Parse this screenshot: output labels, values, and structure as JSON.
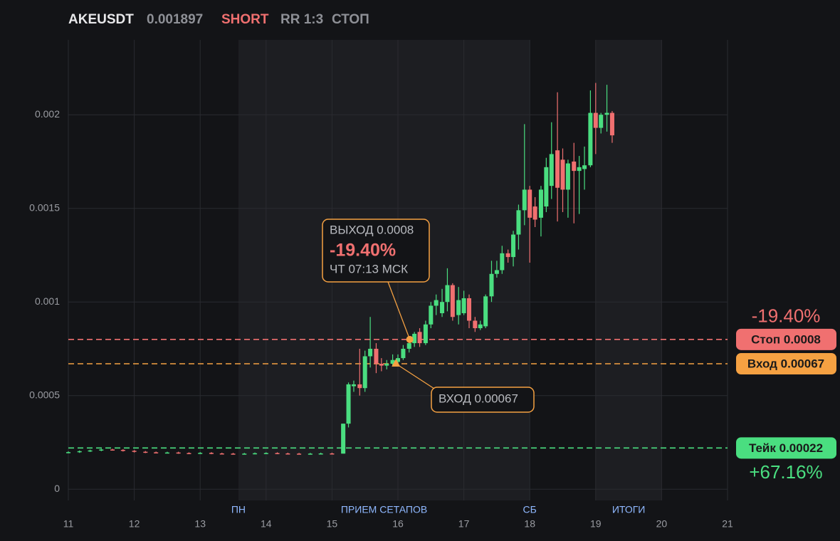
{
  "header": {
    "symbol": "AKEUSDT",
    "price": "0.001897",
    "side": "SHORT",
    "rr": "RR 1:3",
    "status": "СТОП"
  },
  "chart_data": {
    "type": "candlestick",
    "x": [
      11,
      11.17,
      11.33,
      11.5,
      11.67,
      11.83,
      12,
      12.17,
      12.33,
      12.5,
      12.67,
      12.83,
      13,
      13.17,
      13.33,
      13.5,
      13.67,
      13.83,
      14,
      14.17,
      14.33,
      14.5,
      14.67,
      14.83,
      15,
      15.17,
      15.25,
      15.33,
      15.42,
      15.5,
      15.58,
      15.67,
      15.75,
      15.83,
      15.92,
      16,
      16.08,
      16.17,
      16.25,
      16.33,
      16.42,
      16.5,
      16.58,
      16.67,
      16.75,
      16.83,
      16.92,
      17,
      17.08,
      17.17,
      17.25,
      17.33,
      17.42,
      17.5,
      17.58,
      17.67,
      17.75,
      17.83,
      17.92,
      18,
      18.08,
      18.17,
      18.25,
      18.33,
      18.42,
      18.5,
      18.58,
      18.67,
      18.75,
      18.83,
      18.92,
      19,
      19.08,
      19.17,
      19.25
    ],
    "open": [
      0.000196,
      0.000198,
      0.000203,
      0.000207,
      0.000212,
      0.00021,
      0.000205,
      0.0002,
      0.000197,
      0.000195,
      0.000196,
      0.000193,
      0.000192,
      0.000194,
      0.000191,
      0.00019,
      0.000189,
      0.00019,
      0.000192,
      0.000193,
      0.000191,
      0.00019,
      0.000189,
      0.00019,
      0.000191,
      0.00019,
      0.00035,
      0.00055,
      0.00056,
      0.00054,
      0.00071,
      0.00075,
      0.00067,
      0.00066,
      0.00067,
      0.00068,
      0.0007,
      0.00075,
      0.00078,
      0.00084,
      0.00078,
      0.00088,
      0.00098,
      0.00094,
      0.001,
      0.00109,
      0.00093,
      0.00094,
      0.00102,
      0.0009,
      0.00086,
      0.00087,
      0.00103,
      0.00115,
      0.00117,
      0.00126,
      0.00124,
      0.00136,
      0.00149,
      0.0016,
      0.00151,
      0.00145,
      0.00151,
      0.00162,
      0.00181,
      0.00176,
      0.0016,
      0.00175,
      0.0017,
      0.00171,
      0.00173,
      0.00201,
      0.00193,
      0.002,
      0.00201
    ],
    "high": [
      0.000202,
      0.000207,
      0.000211,
      0.000216,
      0.000216,
      0.000214,
      0.000209,
      0.000204,
      0.000201,
      0.0002,
      0.0002,
      0.000197,
      0.000198,
      0.000198,
      0.000195,
      0.000194,
      0.000194,
      0.000196,
      0.000197,
      0.000197,
      0.000195,
      0.000194,
      0.000194,
      0.000195,
      0.000195,
      0.00035,
      0.00057,
      0.00058,
      0.00075,
      0.00074,
      0.00092,
      0.00078,
      0.0007,
      0.00069,
      0.00072,
      0.00072,
      0.00077,
      0.0008,
      0.00084,
      0.00086,
      0.0009,
      0.001,
      0.00104,
      0.00107,
      0.00118,
      0.0011,
      0.00108,
      0.00106,
      0.00104,
      0.00092,
      0.0009,
      0.00104,
      0.00122,
      0.00122,
      0.0013,
      0.00128,
      0.00138,
      0.00152,
      0.00195,
      0.00162,
      0.00156,
      0.00162,
      0.00177,
      0.00196,
      0.00212,
      0.00182,
      0.00176,
      0.00185,
      0.00178,
      0.00183,
      0.00213,
      0.00217,
      0.00201,
      0.00216,
      0.00202
    ],
    "low": [
      0.000192,
      0.000194,
      0.000199,
      0.000203,
      0.000206,
      0.000201,
      0.000196,
      0.000193,
      0.000191,
      0.000191,
      0.000189,
      0.000188,
      0.000188,
      0.000187,
      0.000186,
      0.000185,
      0.000185,
      0.000186,
      0.000188,
      0.000187,
      0.000186,
      0.000185,
      0.000185,
      0.000186,
      0.000185,
      0.00019,
      0.00033,
      0.00052,
      0.0005,
      0.00052,
      0.00065,
      0.00062,
      0.00063,
      0.00064,
      0.00066,
      0.00067,
      0.00069,
      0.00073,
      0.00076,
      0.00076,
      0.00077,
      0.00086,
      0.00093,
      0.00092,
      0.00095,
      0.0009,
      0.00088,
      0.00093,
      0.00086,
      0.00084,
      0.00085,
      0.00086,
      0.001,
      0.00113,
      0.00115,
      0.00121,
      0.00119,
      0.00128,
      0.00141,
      0.00121,
      0.0014,
      0.00135,
      0.00148,
      0.00155,
      0.00143,
      0.00148,
      0.00145,
      0.00142,
      0.00147,
      0.0016,
      0.00172,
      0.00179,
      0.0019,
      0.00191,
      0.00185
    ],
    "close": [
      0.000198,
      0.000203,
      0.000207,
      0.000212,
      0.00021,
      0.000205,
      0.0002,
      0.000197,
      0.000195,
      0.000196,
      0.000193,
      0.000192,
      0.000194,
      0.000191,
      0.00019,
      0.000189,
      0.00019,
      0.000192,
      0.000193,
      0.000191,
      0.00019,
      0.000189,
      0.00019,
      0.000191,
      0.000189,
      0.00035,
      0.00056,
      0.00056,
      0.00054,
      0.00071,
      0.00075,
      0.00067,
      0.00066,
      0.00067,
      0.00069,
      0.0007,
      0.00075,
      0.00078,
      0.00083,
      0.00078,
      0.00088,
      0.00098,
      0.00101,
      0.001,
      0.00109,
      0.00092,
      0.00101,
      0.00102,
      0.0009,
      0.00086,
      0.00088,
      0.00103,
      0.00115,
      0.00117,
      0.00126,
      0.00124,
      0.00136,
      0.00149,
      0.0016,
      0.00145,
      0.00144,
      0.0016,
      0.00172,
      0.00179,
      0.00161,
      0.0016,
      0.00174,
      0.0017,
      0.00172,
      0.00173,
      0.00201,
      0.00193,
      0.002,
      0.00201,
      0.00189
    ],
    "up_color": "#4ade80",
    "down_color": "#f07070",
    "xlim": [
      11,
      21
    ],
    "xticks": [
      11,
      12,
      13,
      14,
      15,
      16,
      17,
      18,
      19,
      20,
      21
    ],
    "ylim": [
      -6e-05,
      0.0024
    ],
    "yticks": [
      0,
      0.0005,
      0.001,
      0.0015,
      0.002
    ],
    "grid": true,
    "zones": [
      {
        "label": "ПРИЕМ СЕТАПОВ",
        "start": 13.58,
        "end": 18
      },
      {
        "label": "ИТОГИ",
        "start": 19,
        "end": 20
      }
    ],
    "markers": [
      {
        "label": "ПН",
        "x": 13.58
      },
      {
        "label": "СБ",
        "x": 18
      }
    ],
    "levels": [
      {
        "label": "Стоп 0.0008",
        "value": 0.0008,
        "color": "#f07070",
        "change": "-19.40%"
      },
      {
        "label": "Вход 0.00067",
        "value": 0.00067,
        "color": "#f5a142"
      },
      {
        "label": "Тейк 0.00022",
        "value": 0.00022,
        "color": "#4ade80",
        "change": "+67.16%"
      }
    ],
    "annotations": [
      {
        "title": "ВЫХОД 0.0008",
        "change": "-19.40%",
        "time": "ЧТ 07:13 МСК",
        "x": 16.18,
        "y": 0.0008
      },
      {
        "title": "ВХОД 0.00067",
        "x": 15.97,
        "y": 0.00067
      }
    ]
  }
}
